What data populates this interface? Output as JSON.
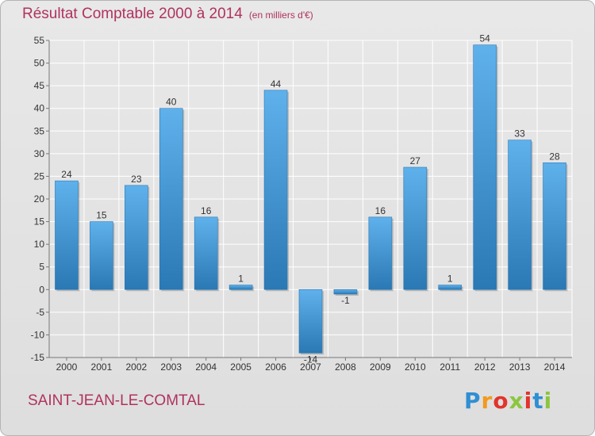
{
  "chart_data": {
    "type": "bar",
    "title": "Résultat Comptable 2000 à 2014",
    "subtitle": "(en milliers d'€)",
    "categories": [
      "2000",
      "2001",
      "2002",
      "2003",
      "2004",
      "2005",
      "2006",
      "2007",
      "2008",
      "2009",
      "2010",
      "2011",
      "2012",
      "2013",
      "2014"
    ],
    "values": [
      24,
      15,
      23,
      40,
      16,
      1,
      44,
      -14,
      -1,
      16,
      27,
      1,
      54,
      33,
      28
    ],
    "ylim": [
      -15,
      55
    ],
    "yticks": [
      -15,
      -10,
      -5,
      0,
      5,
      10,
      15,
      20,
      25,
      30,
      35,
      40,
      45,
      50,
      55
    ],
    "xlabel": "",
    "ylabel": "",
    "grid": true,
    "bar_color": "#3a8fd0",
    "bar_color_light": "#5fb1ec",
    "bar_color_dark": "#2a78b4"
  },
  "footer": {
    "commune": "SAINT-JEAN-LE-COMTAL",
    "brand_letters": [
      "P",
      "r",
      "o",
      "x",
      "i",
      "t",
      "i"
    ],
    "brand_colors": [
      "#2f8fd3",
      "#f29a1e",
      "#e2342c",
      "#8cc63f",
      "#e2342c",
      "#2f8fd3",
      "#8cc63f"
    ]
  }
}
